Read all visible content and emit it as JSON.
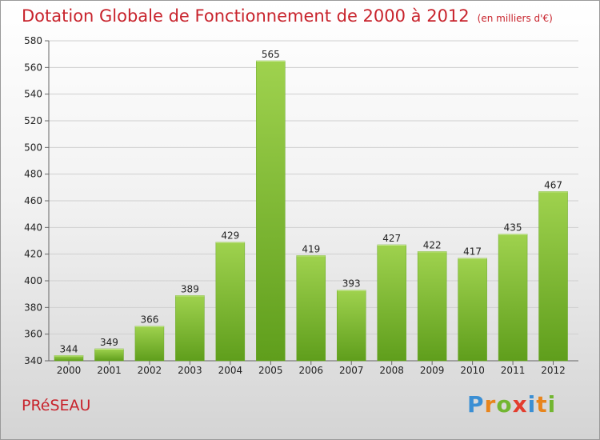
{
  "chart_data": {
    "type": "bar",
    "title": "Dotation Globale de Fonctionnement de 2000 à 2012",
    "subtitle": "(en milliers d'€)",
    "categories": [
      "2000",
      "2001",
      "2002",
      "2003",
      "2004",
      "2005",
      "2006",
      "2007",
      "2008",
      "2009",
      "2010",
      "2011",
      "2012"
    ],
    "values": [
      344,
      349,
      366,
      389,
      429,
      565,
      419,
      393,
      427,
      422,
      417,
      435,
      467
    ],
    "ylim": [
      340,
      580
    ],
    "yticks": [
      340,
      360,
      380,
      400,
      420,
      440,
      460,
      480,
      500,
      520,
      540,
      560,
      580
    ],
    "grid": true,
    "bar_color": "#7dbb35"
  },
  "footer": {
    "place": "PRéSEAU",
    "brand_letters": [
      "P",
      "r",
      "o",
      "x",
      "i",
      "t",
      "i"
    ],
    "brand_colors": [
      "#3b8fd4",
      "#e8851c",
      "#72b631",
      "#e33d2e",
      "#3b8fd4",
      "#e8851c",
      "#72b631"
    ]
  }
}
